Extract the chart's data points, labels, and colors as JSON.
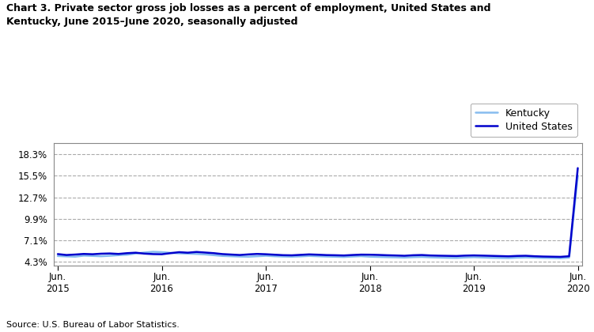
{
  "title": "Chart 3. Private sector gross job losses as a percent of employment, United States and\nKentucky, June 2015–June 2020, seasonally adjusted",
  "source": "Source: U.S. Bureau of Labor Statistics.",
  "legend_labels": [
    "United States",
    "Kentucky"
  ],
  "us_color": "#0000CC",
  "ky_color": "#87BCEF",
  "us_linewidth": 1.8,
  "ky_linewidth": 1.8,
  "yticks": [
    4.3,
    7.1,
    9.9,
    12.7,
    15.5,
    18.3
  ],
  "ylim": [
    3.8,
    19.8
  ],
  "background_color": "#ffffff",
  "us_data": [
    5.3,
    5.18,
    5.24,
    5.32,
    5.28,
    5.35,
    5.38,
    5.32,
    5.42,
    5.48,
    5.36,
    5.3,
    5.28,
    5.42,
    5.55,
    5.48,
    5.58,
    5.5,
    5.42,
    5.3,
    5.24,
    5.18,
    5.26,
    5.32,
    5.28,
    5.22,
    5.16,
    5.14,
    5.2,
    5.26,
    5.22,
    5.17,
    5.15,
    5.12,
    5.18,
    5.23,
    5.22,
    5.19,
    5.15,
    5.12,
    5.08,
    5.15,
    5.18,
    5.12,
    5.09,
    5.07,
    5.05,
    5.1,
    5.13,
    5.1,
    5.07,
    5.04,
    5.01,
    5.06,
    5.08,
    5.02,
    4.98,
    4.96,
    4.94,
    5.02,
    16.5
  ],
  "ky_data": [
    5.05,
    5.0,
    4.96,
    5.1,
    5.06,
    5.02,
    5.08,
    5.16,
    5.22,
    5.38,
    5.5,
    5.6,
    5.55,
    5.46,
    5.4,
    5.36,
    5.32,
    5.26,
    5.16,
    5.06,
    5.02,
    4.98,
    4.96,
    5.02,
    5.08,
    5.02,
    4.98,
    4.96,
    5.0,
    5.06,
    5.02,
    4.98,
    4.95,
    4.92,
    4.98,
    5.03,
    4.96,
    4.93,
    4.9,
    4.88,
    4.85,
    4.9,
    4.93,
    4.88,
    4.85,
    4.82,
    4.8,
    4.86,
    4.9,
    4.86,
    4.82,
    4.8,
    4.78,
    4.84,
    4.87,
    4.84,
    4.8,
    4.78,
    4.76,
    4.84,
    15.5
  ],
  "n_points": 61,
  "xtick_positions": [
    0,
    12,
    24,
    36,
    48,
    60
  ],
  "xtick_labels": [
    "Jun.\n2015",
    "Jun.\n2016",
    "Jun.\n2017",
    "Jun.\n2018",
    "Jun.\n2019",
    "Jun.\n2020"
  ]
}
